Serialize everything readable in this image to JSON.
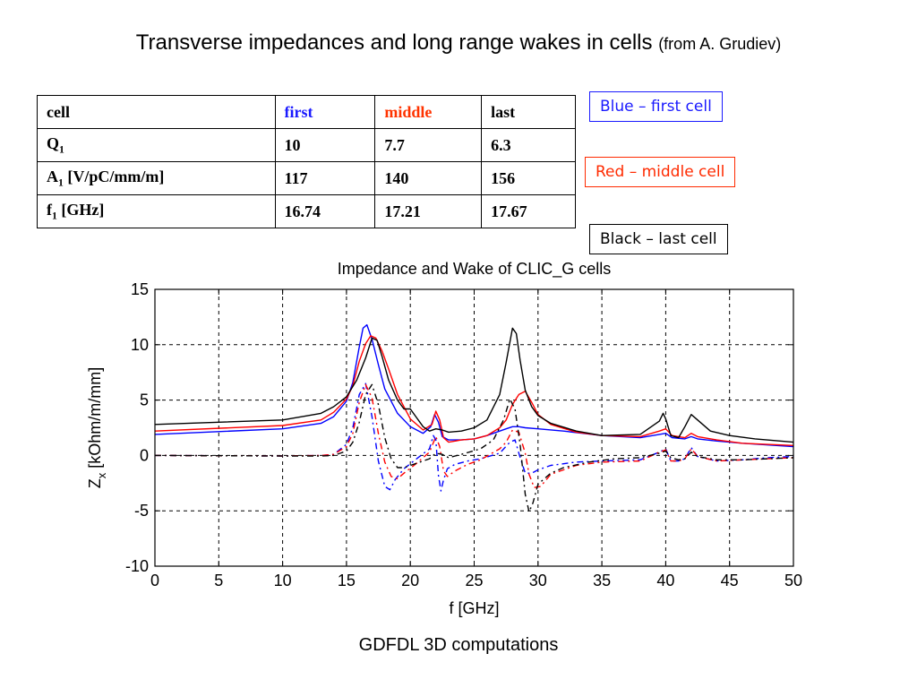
{
  "slide": {
    "title": "Transverse impedances and long range wakes in cells",
    "title_source": "(from A. Grudiev)",
    "caption": "GDFDL 3D computations"
  },
  "table": {
    "header": [
      {
        "text": "cell",
        "color": "#000000"
      },
      {
        "text": "first",
        "color": "#1a1aff"
      },
      {
        "text": "middle",
        "color": "#ff3300"
      },
      {
        "text": "last",
        "color": "#000000"
      }
    ],
    "rows": [
      {
        "label": "Q",
        "sub": "1",
        "unit": "",
        "values": [
          "10",
          "7.7",
          "6.3"
        ]
      },
      {
        "label": "A",
        "sub": "1",
        "unit": " [V/pC/mm/m]",
        "values": [
          "117",
          "140",
          "156"
        ]
      },
      {
        "label": "f",
        "sub": "1",
        "unit": " [GHz]",
        "values": [
          "16.74",
          "17.21",
          "17.67"
        ]
      }
    ]
  },
  "legend_boxes": [
    {
      "text": "Blue – first cell",
      "color": "#1a1aff"
    },
    {
      "text": "Red – middle cell",
      "color": "#ff2a00"
    },
    {
      "text": "Black – last cell",
      "color": "#000000"
    }
  ],
  "chart_data": {
    "type": "line",
    "title": "Impedance and Wake of CLIC_G cells",
    "xlabel": "f [GHz]",
    "ylabel_main": "Z",
    "ylabel_sub": "x",
    "ylabel_unit": " [kOhm/m/mm]",
    "xlim": [
      0,
      50
    ],
    "ylim": [
      -10,
      15
    ],
    "xticks": [
      0,
      5,
      10,
      15,
      20,
      25,
      30,
      35,
      40,
      45,
      50
    ],
    "yticks": [
      -10,
      -5,
      0,
      5,
      10,
      15
    ],
    "grid": true,
    "series": [
      {
        "color": "#0000ff",
        "style": "solid",
        "x": [
          0,
          10,
          13,
          14,
          15,
          15.5,
          16,
          16.3,
          16.6,
          17,
          17.5,
          18,
          19,
          20,
          21,
          21.6,
          21.9,
          22.2,
          22.5,
          23,
          24,
          25,
          26,
          27,
          27.5,
          28,
          28.5,
          29,
          30,
          32,
          35,
          38,
          39.5,
          40,
          40.5,
          41.5,
          42,
          42.5,
          44,
          46,
          50
        ],
        "y": [
          1.9,
          2.4,
          2.9,
          3.5,
          4.9,
          6.6,
          9.8,
          11.5,
          11.8,
          10.5,
          8.2,
          6,
          3.8,
          2.6,
          2,
          2.6,
          3.7,
          3,
          1.7,
          1.4,
          1.4,
          1.5,
          1.8,
          2.2,
          2.4,
          2.6,
          2.6,
          2.5,
          2.4,
          2.2,
          1.8,
          1.6,
          1.9,
          2,
          1.6,
          1.5,
          1.7,
          1.5,
          1.3,
          1.1,
          0.8
        ]
      },
      {
        "color": "#ff0000",
        "style": "solid",
        "x": [
          0,
          10,
          13,
          14,
          15,
          15.5,
          16,
          16.5,
          16.9,
          17.3,
          17.8,
          18.3,
          19,
          20,
          21,
          21.7,
          22,
          22.3,
          22.6,
          23,
          24,
          25,
          26,
          27,
          27.5,
          28,
          28.5,
          29,
          29.5,
          30,
          31,
          33,
          35,
          38,
          39.5,
          40,
          40.5,
          41.5,
          42,
          42.5,
          44,
          46,
          50
        ],
        "y": [
          2.2,
          2.7,
          3.2,
          3.9,
          5.1,
          6.3,
          8.5,
          10.1,
          10.8,
          10.6,
          9.4,
          7.8,
          5.5,
          3.3,
          2.3,
          2.8,
          4,
          3.2,
          1.6,
          1.2,
          1.4,
          1.5,
          1.8,
          2.5,
          3.2,
          4.6,
          5.5,
          5.8,
          4.8,
          3.7,
          2.8,
          2.1,
          1.8,
          1.7,
          2.2,
          2.4,
          1.8,
          1.6,
          2,
          1.7,
          1.4,
          1.1,
          0.9
        ]
      },
      {
        "color": "#000000",
        "style": "solid",
        "x": [
          0,
          10,
          13,
          14,
          15,
          15.8,
          16.5,
          17,
          17.4,
          17.8,
          18.3,
          19,
          19.5,
          20,
          20.5,
          21,
          21.5,
          22,
          22.5,
          23,
          24,
          25,
          26,
          27,
          27.5,
          28,
          28.3,
          28.6,
          29,
          29.5,
          30,
          31,
          33,
          35,
          38,
          39.5,
          39.8,
          40,
          40.4,
          41,
          41.5,
          42,
          42.5,
          43.5,
          45,
          47,
          50
        ],
        "y": [
          2.8,
          3.2,
          3.8,
          4.4,
          5.3,
          6.8,
          8.8,
          10.6,
          10.4,
          8.9,
          6.8,
          5,
          4.2,
          4.2,
          3.4,
          2.6,
          2.2,
          2.4,
          2.3,
          2.1,
          2.2,
          2.5,
          3.2,
          5.5,
          8.4,
          11.5,
          11,
          8.6,
          5.9,
          4.4,
          3.6,
          2.9,
          2.2,
          1.8,
          1.9,
          3.1,
          3.8,
          3.3,
          1.8,
          1.6,
          2.6,
          3.7,
          3.2,
          2.2,
          1.8,
          1.5,
          1.2
        ]
      },
      {
        "color": "#0000ff",
        "style": "dash",
        "x": [
          0,
          10,
          13,
          14,
          15,
          15.5,
          16,
          16.5,
          17,
          17.5,
          18,
          18.4,
          18.8,
          19.5,
          20.5,
          21.5,
          21.8,
          22,
          22.2,
          22.4,
          22.6,
          22.9,
          23.5,
          24.5,
          25.5,
          27,
          27.8,
          28.2,
          28.5,
          29,
          29.5,
          30,
          31,
          33,
          35,
          38,
          39.5,
          40,
          40.4,
          41,
          41.5,
          42,
          42.5,
          44,
          46,
          48,
          50
        ],
        "y": [
          0,
          -0.05,
          0,
          0.1,
          1,
          2.5,
          5.5,
          6.5,
          3.5,
          -0.5,
          -2.8,
          -3.1,
          -2.2,
          -1.2,
          -0.3,
          0.6,
          1.8,
          1.4,
          -1.8,
          -3.2,
          -2.2,
          -1.2,
          -0.8,
          -0.5,
          -0.3,
          0.2,
          1.2,
          1.4,
          0.2,
          -1.6,
          -1.6,
          -1.3,
          -0.9,
          -0.6,
          -0.5,
          -0.4,
          0.3,
          0.6,
          -0.5,
          -0.5,
          -0.3,
          0.7,
          -0.1,
          -0.5,
          -0.4,
          -0.2,
          -0.1
        ]
      },
      {
        "color": "#ff0000",
        "style": "dash",
        "x": [
          0,
          10,
          13,
          14,
          15,
          15.5,
          16,
          16.5,
          17,
          17.5,
          18,
          18.5,
          19,
          19.5,
          20.5,
          21.5,
          22,
          22.3,
          22.6,
          22.9,
          23.5,
          24.5,
          25.5,
          27,
          27.5,
          28,
          28.5,
          29,
          29.3,
          29.7,
          30.2,
          31,
          33,
          35,
          38,
          39.5,
          40,
          40.4,
          41,
          41.5,
          42,
          42.5,
          44,
          46,
          48,
          50
        ],
        "y": [
          0,
          -0.05,
          0,
          0.1,
          0.8,
          2,
          4.8,
          6.4,
          5.2,
          2,
          -0.6,
          -1.9,
          -2.1,
          -1.6,
          -0.7,
          0.3,
          1.7,
          0.8,
          -1.4,
          -1.9,
          -1.4,
          -0.8,
          -0.4,
          0.6,
          1.2,
          2.3,
          2.1,
          0.2,
          -1.7,
          -2.9,
          -2.8,
          -1.7,
          -0.9,
          -0.6,
          -0.5,
          0.3,
          0.5,
          -0.5,
          -0.5,
          -0.3,
          0.6,
          -0.1,
          -0.5,
          -0.4,
          -0.3,
          -0.2
        ]
      },
      {
        "color": "#000000",
        "style": "dash",
        "x": [
          0,
          10,
          13,
          14,
          15,
          15.5,
          16,
          16.5,
          17,
          17.5,
          18,
          18.5,
          19,
          19.5,
          20.5,
          21.5,
          22,
          22.5,
          23,
          24,
          25.5,
          26.5,
          27.3,
          27.8,
          28.2,
          28.6,
          29,
          29.3,
          29.6,
          30,
          31,
          32,
          34,
          36,
          38,
          39.5,
          40,
          40.4,
          41,
          41.5,
          42,
          42.5,
          44,
          46,
          48,
          50
        ],
        "y": [
          0,
          -0.05,
          -0.05,
          0,
          0.4,
          1.2,
          3,
          5.5,
          6.4,
          4.6,
          1.6,
          -0.3,
          -1.1,
          -1.1,
          -0.7,
          -0.3,
          0.2,
          0.1,
          -0.2,
          0.1,
          0.6,
          1.4,
          3.2,
          5.1,
          4.2,
          1,
          -3.5,
          -5.1,
          -4.3,
          -2.6,
          -1.6,
          -1.1,
          -0.6,
          -0.3,
          -0.2,
          0.2,
          0.4,
          -0.2,
          -0.4,
          -0.3,
          0.3,
          -0.1,
          -0.4,
          -0.4,
          -0.3,
          -0.2
        ]
      }
    ]
  }
}
